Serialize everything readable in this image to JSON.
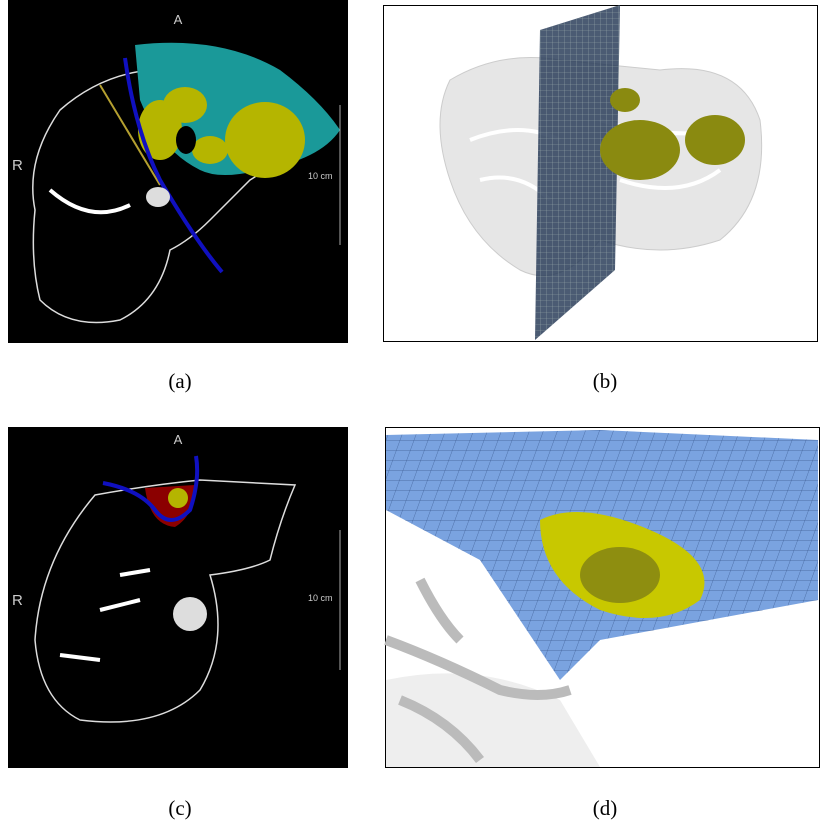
{
  "panels": [
    {
      "caption": "(a)",
      "labels": {
        "top": "A",
        "left": "R",
        "scale": "10 cm"
      }
    },
    {
      "caption": "(b)"
    },
    {
      "caption": "(c)",
      "labels": {
        "top": "A",
        "left": "R",
        "scale": "10 cm"
      }
    },
    {
      "caption": "(d)"
    }
  ]
}
